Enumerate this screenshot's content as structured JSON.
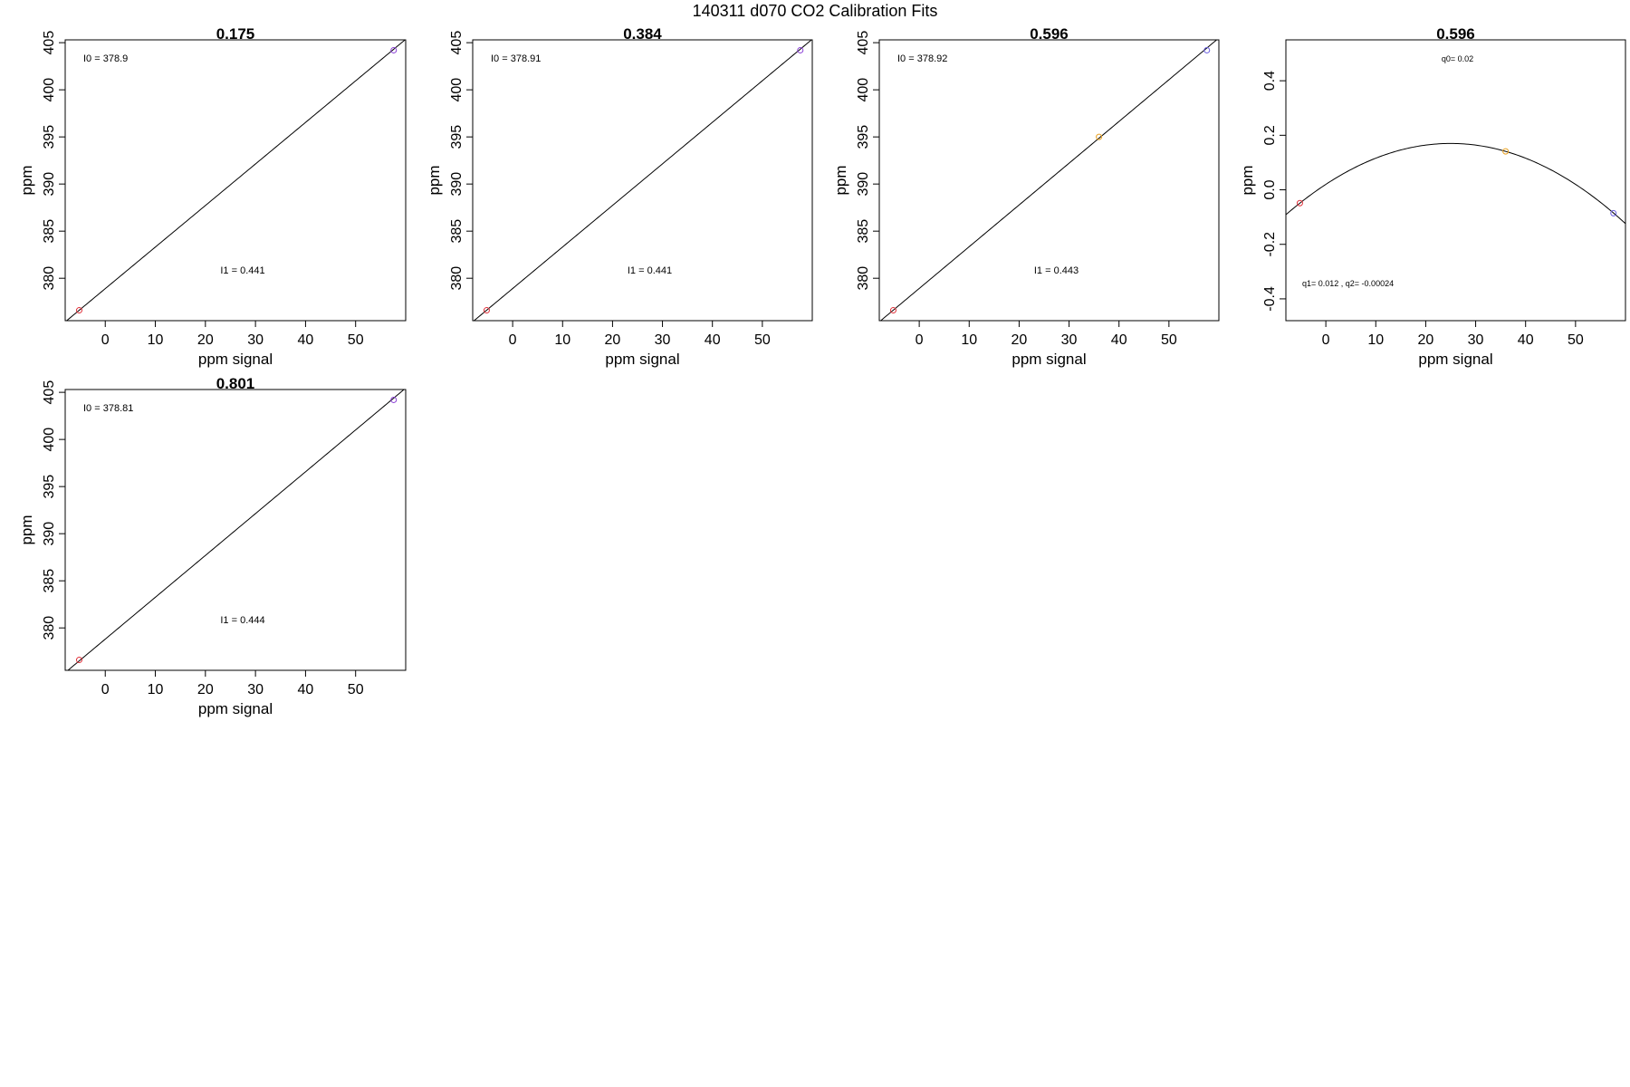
{
  "figure": {
    "title": "140311   d070   CO2 Calibration Fits"
  },
  "chart_data": [
    {
      "type": "line",
      "title": "0.175",
      "xlabel": "ppm signal",
      "ylabel": "ppm",
      "xlim": [
        -8,
        60
      ],
      "ylim": [
        375.5,
        405.3
      ],
      "xticks": [
        0,
        10,
        20,
        30,
        40,
        50
      ],
      "yticks": [
        380,
        385,
        390,
        395,
        400,
        405
      ],
      "grid": false,
      "fit": {
        "kind": "linear",
        "intercept": 378.9,
        "slope": 0.441
      },
      "points": [
        {
          "x": -5.2,
          "y": 376.6,
          "color": "#e0303a"
        },
        {
          "x": 57.6,
          "y": 404.2,
          "color": "#8a3fd6"
        }
      ],
      "annotations": [
        {
          "text": "I0 =  378.9",
          "anchor": "top-left"
        },
        {
          "text": "I1 =  0.441",
          "anchor": "lower-center"
        }
      ]
    },
    {
      "type": "line",
      "title": "0.384",
      "xlabel": "ppm signal",
      "ylabel": "ppm",
      "xlim": [
        -8,
        60
      ],
      "ylim": [
        375.5,
        405.3
      ],
      "xticks": [
        0,
        10,
        20,
        30,
        40,
        50
      ],
      "yticks": [
        380,
        385,
        390,
        395,
        400,
        405
      ],
      "grid": false,
      "fit": {
        "kind": "linear",
        "intercept": 378.91,
        "slope": 0.441
      },
      "points": [
        {
          "x": -5.2,
          "y": 376.6,
          "color": "#e0303a"
        },
        {
          "x": 57.6,
          "y": 404.2,
          "color": "#8a3fd6"
        }
      ],
      "annotations": [
        {
          "text": "I0 =  378.91",
          "anchor": "top-left"
        },
        {
          "text": "I1 =  0.441",
          "anchor": "lower-center"
        }
      ]
    },
    {
      "type": "line",
      "title": "0.596",
      "xlabel": "ppm signal",
      "ylabel": "ppm",
      "xlim": [
        -8,
        60
      ],
      "ylim": [
        375.5,
        405.3
      ],
      "xticks": [
        0,
        10,
        20,
        30,
        40,
        50
      ],
      "yticks": [
        380,
        385,
        390,
        395,
        400,
        405
      ],
      "grid": false,
      "fit": {
        "kind": "linear",
        "intercept": 378.92,
        "slope": 0.443
      },
      "points": [
        {
          "x": -5.2,
          "y": 376.6,
          "color": "#e0303a"
        },
        {
          "x": 36.0,
          "y": 395.0,
          "color": "#e8a020"
        },
        {
          "x": 57.6,
          "y": 404.2,
          "color": "#6a5fe0"
        }
      ],
      "annotations": [
        {
          "text": "I0 =  378.92",
          "anchor": "top-left"
        },
        {
          "text": "I1 =  0.443",
          "anchor": "lower-center"
        }
      ]
    },
    {
      "type": "line",
      "title": "0.596",
      "xlabel": "ppm signal",
      "ylabel": "ppm",
      "xlim": [
        -8,
        60
      ],
      "ylim": [
        -0.48,
        0.55
      ],
      "xticks": [
        0,
        10,
        20,
        30,
        40,
        50
      ],
      "yticks": [
        -0.4,
        -0.2,
        0.0,
        0.2,
        0.4
      ],
      "ytick_labels": [
        "-0.4",
        "-0.2",
        "0.0",
        "0.2",
        "0.4"
      ],
      "grid": false,
      "fit": {
        "kind": "quadratic",
        "q0": 0.02,
        "q1": 0.012,
        "q2": -0.00024
      },
      "points": [
        {
          "x": -5.2,
          "y": -0.049,
          "color": "#e0303a"
        },
        {
          "x": 36.0,
          "y": 0.141,
          "color": "#e8a020"
        },
        {
          "x": 57.6,
          "y": -0.086,
          "color": "#6a5fe0"
        }
      ],
      "annotations": [
        {
          "text": "q0= 0.02",
          "anchor": "top-center"
        },
        {
          "text": "q1= 0.012 , q2= -0.00024",
          "anchor": "bottom-left"
        }
      ]
    },
    {
      "type": "line",
      "title": "0.801",
      "xlabel": "ppm signal",
      "ylabel": "ppm",
      "xlim": [
        -8,
        60
      ],
      "ylim": [
        375.5,
        405.3
      ],
      "xticks": [
        0,
        10,
        20,
        30,
        40,
        50
      ],
      "yticks": [
        380,
        385,
        390,
        395,
        400,
        405
      ],
      "grid": false,
      "fit": {
        "kind": "linear",
        "intercept": 378.81,
        "slope": 0.444
      },
      "points": [
        {
          "x": -5.2,
          "y": 376.6,
          "color": "#e0303a"
        },
        {
          "x": 57.6,
          "y": 404.2,
          "color": "#8a3fd6"
        }
      ],
      "annotations": [
        {
          "text": "I0 =  378.81",
          "anchor": "top-left"
        },
        {
          "text": "I1 =  0.444",
          "anchor": "lower-center"
        }
      ]
    }
  ]
}
